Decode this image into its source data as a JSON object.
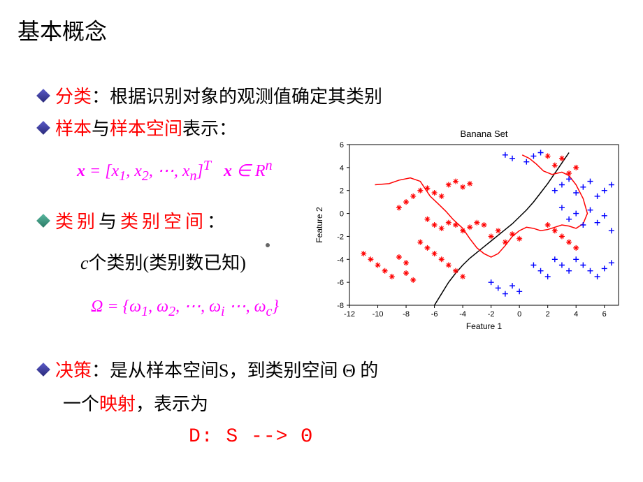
{
  "title": "基本概念",
  "bullets": {
    "b1_red": "分类",
    "b1_rest": "：根据识别对象的观测值确定其类别",
    "b2_red1": "样本",
    "b2_black1": "与",
    "b2_red2": "样本空间",
    "b2_black2": "表示：",
    "b3_red1": "类别",
    "b3_black1": "与",
    "b3_red2": "类别空间",
    "b3_black2": "：",
    "b3_sub": "个类别(类别数已知)",
    "b3_sub_c": "c",
    "b4_red": "决策",
    "b4_rest1": "：是从样本空间S，到类别空间 Θ 的",
    "b4_line2_black": "一个",
    "b4_line2_red": "映射",
    "b4_line2_rest": "，表示为",
    "b4_formula": "D:   S   -->    Θ"
  },
  "formulas": {
    "f1_html": "<b>x</b> = [<i>x</i><sub>1</sub>, <i>x</i><sub>2</sub>, ⋯, <i>x</i><sub><i>n</i></sub>]<sup><i>T</i></sup>&nbsp;&nbsp;&nbsp;<b>x</b> ∈ <i>R</i><sup><i>n</i></sup>",
    "f2_html": "Ω = {<i>ω</i><sub>1</sub>, <i>ω</i><sub>2</sub>, ⋯, <i>ω</i><sub><i>i</i></sub> ⋯, <i>ω</i><sub><i>c</i></sub>}"
  },
  "colors": {
    "red": "#ff0000",
    "magenta": "#ff00ff",
    "black": "#000000",
    "bullet_blue": "#3a3a9a",
    "bullet_teal": "#3a9a7a",
    "scatter_red": "#ff0000",
    "scatter_blue": "#0000ff",
    "curve": "#000000",
    "axis": "#000000",
    "chart_bg": "#ffffff"
  },
  "chart": {
    "title": "Banana Set",
    "title_fontsize": 13,
    "xlabel": "Feature 1",
    "ylabel": "Feature 2",
    "label_fontsize": 12,
    "tick_fontsize": 11,
    "xlim": [
      -12,
      7
    ],
    "ylim": [
      -8,
      6
    ],
    "xticks": [
      -12,
      -10,
      -8,
      -6,
      -4,
      -2,
      0,
      2,
      4,
      6
    ],
    "yticks": [
      -8,
      -6,
      -4,
      -2,
      0,
      2,
      4,
      6
    ],
    "red_points": [
      [
        -11,
        -3.5
      ],
      [
        -10.5,
        -4
      ],
      [
        -10,
        -4.5
      ],
      [
        -9.5,
        -5
      ],
      [
        -9,
        -5.5
      ],
      [
        -8.5,
        -3.8
      ],
      [
        -8,
        -4.3
      ],
      [
        -8,
        -5.2
      ],
      [
        -7.5,
        -5.8
      ],
      [
        -8.5,
        0.5
      ],
      [
        -8,
        1
      ],
      [
        -7.5,
        1.5
      ],
      [
        -7,
        2
      ],
      [
        -6.5,
        2.2
      ],
      [
        -6,
        1.8
      ],
      [
        -5.5,
        1.5
      ],
      [
        -5,
        2.5
      ],
      [
        -4.5,
        2.8
      ],
      [
        -4,
        2.3
      ],
      [
        -3.5,
        2.6
      ],
      [
        -6.5,
        -0.5
      ],
      [
        -6,
        -1
      ],
      [
        -5.5,
        -1.3
      ],
      [
        -5,
        -0.8
      ],
      [
        -4.5,
        -1
      ],
      [
        -4,
        -1.5
      ],
      [
        -3.5,
        -1.2
      ],
      [
        -3,
        -0.8
      ],
      [
        -7,
        -2.5
      ],
      [
        -6.5,
        -3
      ],
      [
        -6,
        -3.5
      ],
      [
        -5.5,
        -4
      ],
      [
        -5,
        -4.5
      ],
      [
        -4.5,
        -5
      ],
      [
        -4,
        -5.5
      ],
      [
        -2.5,
        -1
      ],
      [
        -2,
        -2
      ],
      [
        -1.5,
        -1.5
      ],
      [
        -1,
        -2.5
      ],
      [
        -0.5,
        -1.8
      ],
      [
        0,
        -2.2
      ],
      [
        2,
        5
      ],
      [
        2.5,
        4.2
      ],
      [
        3,
        4.8
      ],
      [
        3.5,
        3.5
      ],
      [
        4,
        4
      ],
      [
        2,
        -1
      ],
      [
        2.5,
        -1.5
      ],
      [
        3,
        -2
      ],
      [
        3.5,
        -2.5
      ],
      [
        4,
        -3
      ]
    ],
    "blue_points": [
      [
        0.5,
        4.5
      ],
      [
        1,
        5
      ],
      [
        1.5,
        5.3
      ],
      [
        -0.5,
        4.8
      ],
      [
        -1,
        5.1
      ],
      [
        2.5,
        2
      ],
      [
        3,
        2.5
      ],
      [
        3.5,
        3
      ],
      [
        4,
        1.8
      ],
      [
        4.5,
        2.3
      ],
      [
        5,
        2.8
      ],
      [
        5.5,
        1.5
      ],
      [
        6,
        2
      ],
      [
        6.5,
        2.5
      ],
      [
        3,
        0.5
      ],
      [
        3.5,
        -0.5
      ],
      [
        4,
        0
      ],
      [
        4.5,
        -1
      ],
      [
        5,
        0.3
      ],
      [
        5.5,
        -0.8
      ],
      [
        6,
        -0.2
      ],
      [
        6.5,
        -1.5
      ],
      [
        -2,
        -6
      ],
      [
        -1.5,
        -6.5
      ],
      [
        -1,
        -7
      ],
      [
        -0.5,
        -6.3
      ],
      [
        0,
        -6.8
      ],
      [
        1,
        -4.5
      ],
      [
        1.5,
        -5
      ],
      [
        2,
        -5.5
      ],
      [
        2.5,
        -4
      ],
      [
        3,
        -4.5
      ],
      [
        3.5,
        -5
      ],
      [
        4,
        -4
      ],
      [
        4.5,
        -4.5
      ],
      [
        5,
        -5
      ],
      [
        5.5,
        -5.5
      ],
      [
        6,
        -4.8
      ],
      [
        6.5,
        -4.3
      ]
    ],
    "black_curve": [
      [
        -6,
        -8
      ],
      [
        -5.5,
        -7
      ],
      [
        -5,
        -6
      ],
      [
        -4.5,
        -5.2
      ],
      [
        -4,
        -4.5
      ],
      [
        -3.5,
        -3.9
      ],
      [
        -3,
        -3.4
      ],
      [
        -2.5,
        -2.9
      ],
      [
        -2,
        -2.4
      ],
      [
        -1.5,
        -1.9
      ],
      [
        -1,
        -1.4
      ],
      [
        -0.5,
        -0.9
      ],
      [
        0,
        -0.3
      ],
      [
        0.5,
        0.3
      ],
      [
        1,
        1
      ],
      [
        1.5,
        1.8
      ],
      [
        2,
        2.6
      ],
      [
        2.5,
        3.5
      ],
      [
        3,
        4.4
      ],
      [
        3.5,
        5.3
      ]
    ],
    "red_boundary": [
      [
        -10.2,
        2.5
      ],
      [
        -9.2,
        2.6
      ],
      [
        -8.5,
        2.9
      ],
      [
        -7.7,
        3.1
      ],
      [
        -7,
        2.8
      ],
      [
        -6.3,
        1.5
      ],
      [
        -5.7,
        0.8
      ],
      [
        -5.2,
        0.2
      ],
      [
        -4.7,
        -0.5
      ],
      [
        -4,
        -1.3
      ],
      [
        -3.5,
        -2.2
      ],
      [
        -3,
        -3
      ],
      [
        -2.5,
        -3.5
      ],
      [
        -2,
        -3.8
      ],
      [
        -1.5,
        -3.5
      ],
      [
        -1,
        -2.8
      ],
      [
        -0.5,
        -2
      ],
      [
        0,
        -1.5
      ],
      [
        0.5,
        -1.2
      ],
      [
        1,
        -1.3
      ],
      [
        1.5,
        -1.5
      ],
      [
        2,
        -1.4
      ],
      [
        2.5,
        -1.2
      ],
      [
        3,
        -1
      ],
      [
        3.5,
        -1.1
      ],
      [
        4,
        -1.3
      ],
      [
        4.5,
        -0.9
      ],
      [
        4.8,
        0
      ],
      [
        4.5,
        1.3
      ],
      [
        4,
        2.5
      ],
      [
        3.5,
        3.3
      ],
      [
        3,
        3.6
      ],
      [
        2.3,
        3.4
      ],
      [
        1.7,
        3.7
      ],
      [
        1.2,
        4.3
      ],
      [
        0.7,
        4.8
      ],
      [
        0.2,
        5.1
      ]
    ]
  }
}
